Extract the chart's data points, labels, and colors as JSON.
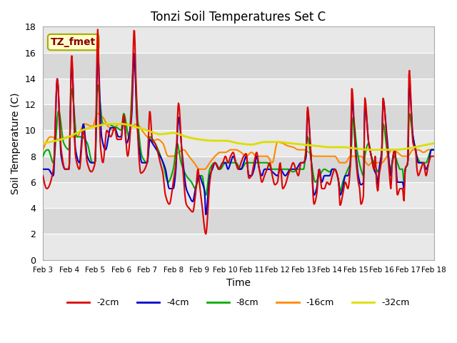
{
  "title": "Tonzi Soil Temperatures Set C",
  "xlabel": "Time",
  "ylabel": "Soil Temperature (C)",
  "xlim": [
    0,
    15
  ],
  "ylim": [
    0,
    18
  ],
  "yticks": [
    0,
    2,
    4,
    6,
    8,
    10,
    12,
    14,
    16,
    18
  ],
  "xtick_labels": [
    "Feb 3",
    "Feb 4",
    "Feb 5",
    "Feb 6",
    "Feb 7",
    "Feb 8",
    "Feb 9",
    "Feb 10",
    "Feb 11",
    "Feb 12",
    "Feb 13",
    "Feb 14",
    "Feb 15",
    "Feb 16",
    "Feb 17",
    "Feb 18"
  ],
  "annotation_text": "TZ_fmet",
  "annotation_color": "#880000",
  "annotation_bg": "#ffffcc",
  "annotation_edge": "#aaaa00",
  "plot_bg_light": "#f0f0f0",
  "plot_bg_dark": "#d8d8d8",
  "series_colors": {
    "-2cm": "#dd0000",
    "-4cm": "#0000cc",
    "-8cm": "#00aa00",
    "-16cm": "#ff8800",
    "-32cm": "#dddd00"
  },
  "series_lw": {
    "-2cm": 1.5,
    "-4cm": 1.5,
    "-8cm": 1.5,
    "-16cm": 1.5,
    "-32cm": 2.0
  }
}
